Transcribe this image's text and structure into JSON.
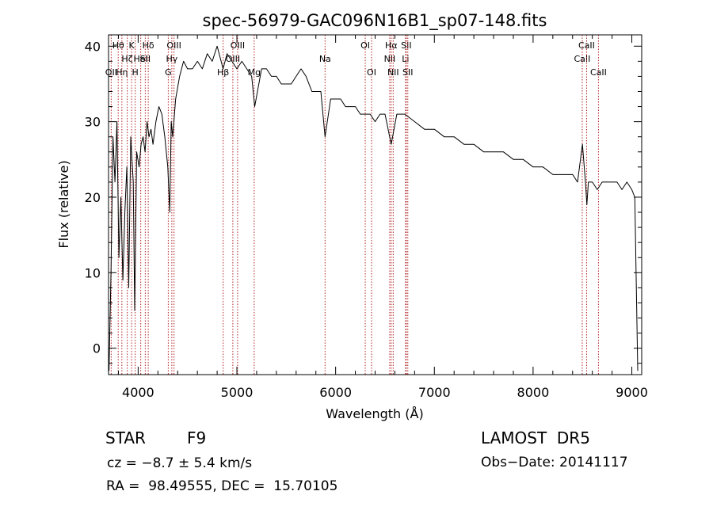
{
  "chart_data": {
    "type": "line",
    "title": "spec-56979-GAC096N16B1_sp07-148.fits",
    "xlabel": "Wavelength (Å)",
    "ylabel": "Flux (relative)",
    "xlim": [
      3700,
      9100
    ],
    "ylim": [
      -3.5,
      41.5
    ],
    "xticks": [
      4000,
      5000,
      6000,
      7000,
      8000,
      9000
    ],
    "yticks": [
      0,
      10,
      20,
      30,
      40
    ],
    "grid": false,
    "colors": {
      "spectrum": "#000000",
      "lines": "#b22222"
    },
    "series": [
      {
        "x": [
          3705,
          3725,
          3745,
          3765,
          3785,
          3805,
          3825,
          3845,
          3865,
          3885,
          3905,
          3925,
          3950,
          3965,
          3985,
          4010,
          4030,
          4050,
          4070,
          4090,
          4110,
          4130,
          4150,
          4180,
          4210,
          4240,
          4270,
          4300,
          4320,
          4335,
          4350,
          4380,
          4420,
          4460,
          4500,
          4550,
          4600,
          4650,
          4700,
          4750,
          4800,
          4860,
          4900,
          4950,
          5000,
          5050,
          5100,
          5150,
          5180,
          5250,
          5300,
          5350,
          5400,
          5450,
          5500,
          5550,
          5600,
          5650,
          5700,
          5760,
          5800,
          5850,
          5893,
          5950,
          6000,
          6050,
          6100,
          6150,
          6200,
          6250,
          6300,
          6350,
          6400,
          6450,
          6500,
          6563,
          6620,
          6700,
          6800,
          6900,
          7000,
          7100,
          7200,
          7300,
          7400,
          7500,
          7600,
          7700,
          7800,
          7900,
          8000,
          8100,
          8200,
          8300,
          8400,
          8450,
          8500,
          8530,
          8545,
          8560,
          8600,
          8650,
          8700,
          8750,
          8800,
          8850,
          8900,
          8950,
          9000,
          9030,
          9060
        ],
        "y": [
          -3,
          10,
          28,
          22,
          30,
          12,
          20,
          9,
          18,
          24,
          8,
          28,
          22,
          5,
          26,
          24,
          27,
          28,
          26,
          30,
          28,
          29,
          27,
          30,
          32,
          31,
          28,
          24,
          18,
          30,
          28,
          33,
          36,
          38,
          37,
          37,
          38,
          37,
          39,
          38,
          40,
          37,
          39,
          38,
          37,
          38,
          37,
          36,
          32,
          37,
          37,
          36,
          36,
          35,
          35,
          35,
          36,
          37,
          36,
          34,
          34,
          34,
          28,
          33,
          33,
          33,
          32,
          32,
          32,
          31,
          31,
          31,
          30,
          31,
          31,
          27,
          31,
          31,
          30,
          29,
          29,
          28,
          28,
          27,
          27,
          26,
          26,
          26,
          25,
          25,
          24,
          24,
          23,
          23,
          23,
          22,
          27,
          22,
          19,
          22,
          22,
          21,
          22,
          22,
          22,
          22,
          21,
          22,
          21,
          20,
          -3
        ]
      }
    ],
    "lines": [
      {
        "x": 3727,
        "label": "OII",
        "row": 3
      },
      {
        "x": 3798,
        "label": "Hθ",
        "row": 1
      },
      {
        "x": 3835,
        "label": "Hη",
        "row": 3
      },
      {
        "x": 3889,
        "label": "Hζ",
        "row": 2
      },
      {
        "x": 3934,
        "label": "K",
        "row": 1
      },
      {
        "x": 3970,
        "label": "H",
        "row": 3
      },
      {
        "x": 4026,
        "label": "HeI",
        "row": 2
      },
      {
        "x": 4072,
        "label": "SII",
        "row": 2
      },
      {
        "x": 4102,
        "label": "Hδ",
        "row": 1
      },
      {
        "x": 4305,
        "label": "G",
        "row": 3
      },
      {
        "x": 4341,
        "label": "Hγ",
        "row": 2
      },
      {
        "x": 4363,
        "label": "OIII",
        "row": 1
      },
      {
        "x": 4861,
        "label": "Hβ",
        "row": 3
      },
      {
        "x": 4959,
        "label": "OIII",
        "row": 2
      },
      {
        "x": 5007,
        "label": "OIII",
        "row": 1
      },
      {
        "x": 5175,
        "label": "Mg",
        "row": 3
      },
      {
        "x": 5893,
        "label": "Na",
        "row": 2
      },
      {
        "x": 6300,
        "label": "OI",
        "row": 1
      },
      {
        "x": 6364,
        "label": "OI",
        "row": 3
      },
      {
        "x": 6548,
        "label": "NII",
        "row": 2
      },
      {
        "x": 6563,
        "label": "Hα",
        "row": 1
      },
      {
        "x": 6583,
        "label": "NII",
        "row": 3
      },
      {
        "x": 6708,
        "label": "Li",
        "row": 2
      },
      {
        "x": 6716,
        "label": "SII",
        "row": 1
      },
      {
        "x": 6731,
        "label": "SII",
        "row": 3
      },
      {
        "x": 8498,
        "label": "CaII",
        "row": 2
      },
      {
        "x": 8542,
        "label": "CaII",
        "row": 1
      },
      {
        "x": 8662,
        "label": "CaII",
        "row": 3
      }
    ]
  },
  "info": {
    "class_label": "STAR",
    "subclass": "F9",
    "survey": "LAMOST  DR5",
    "cz": "cz = −8.7 ± 5.4 km/s",
    "obs_date": "Obs−Date: 20141117",
    "coords": "RA =  98.49555, DEC =  15.70105"
  }
}
